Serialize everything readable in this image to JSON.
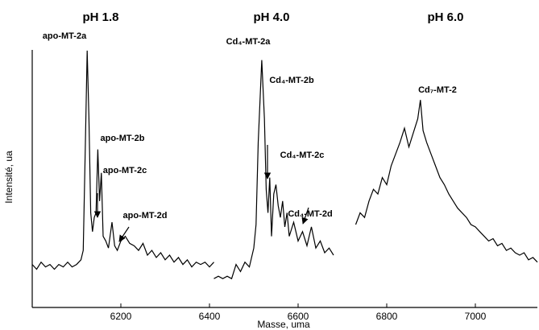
{
  "chart_data": {
    "type": "line",
    "xlabel": "Masse, uma",
    "ylabel": "Intensité, ua",
    "xlim": [
      6000,
      7140
    ],
    "ylim": [
      0,
      100
    ],
    "xticks": [
      6200,
      6400,
      6600,
      6800,
      7000
    ],
    "series": [
      {
        "name": "pH 1.8",
        "color": "#000000",
        "x": [
          6000,
          6010,
          6020,
          6030,
          6040,
          6050,
          6060,
          6070,
          6080,
          6090,
          6100,
          6110,
          6115,
          6120,
          6124,
          6128,
          6132,
          6136,
          6140,
          6144,
          6148,
          6152,
          6156,
          6160,
          6166,
          6172,
          6180,
          6186,
          6192,
          6200,
          6210,
          6220,
          6230,
          6240,
          6250,
          6260,
          6270,
          6280,
          6290,
          6300,
          6310,
          6320,
          6330,
          6340,
          6350,
          6360,
          6370,
          6380,
          6390,
          6400,
          6410
        ],
        "values": [
          8,
          6,
          9,
          7,
          8,
          6,
          8,
          7,
          9,
          7,
          8,
          10,
          14,
          60,
          99,
          70,
          30,
          22,
          28,
          30,
          57,
          35,
          47,
          20,
          18,
          15,
          26,
          16,
          14,
          18,
          20,
          17,
          16,
          14,
          17,
          12,
          14,
          11,
          13,
          10,
          12,
          9,
          11,
          8,
          10,
          7,
          9,
          8,
          9,
          7,
          9
        ]
      },
      {
        "name": "pH 4.0",
        "color": "#000000",
        "x": [
          6410,
          6420,
          6430,
          6440,
          6450,
          6460,
          6470,
          6480,
          6490,
          6500,
          6505,
          6510,
          6518,
          6524,
          6528,
          6532,
          6536,
          6540,
          6545,
          6550,
          6555,
          6560,
          6565,
          6570,
          6575,
          6580,
          6590,
          6600,
          6610,
          6620,
          6630,
          6640,
          6650,
          6660,
          6670,
          6680
        ],
        "values": [
          2,
          3,
          2,
          3,
          2,
          8,
          5,
          9,
          7,
          15,
          25,
          60,
          95,
          70,
          40,
          30,
          45,
          20,
          38,
          42,
          33,
          28,
          35,
          24,
          30,
          20,
          26,
          18,
          22,
          16,
          24,
          15,
          18,
          13,
          15,
          12
        ]
      },
      {
        "name": "pH 6.0",
        "color": "#000000",
        "x": [
          6730,
          6740,
          6750,
          6760,
          6770,
          6780,
          6790,
          6800,
          6810,
          6820,
          6830,
          6840,
          6850,
          6860,
          6870,
          6876,
          6882,
          6890,
          6900,
          6910,
          6920,
          6930,
          6940,
          6950,
          6960,
          6970,
          6980,
          6990,
          7000,
          7010,
          7020,
          7030,
          7040,
          7050,
          7060,
          7070,
          7080,
          7090,
          7100,
          7110,
          7120,
          7130,
          7140
        ],
        "values": [
          25,
          30,
          28,
          35,
          40,
          38,
          45,
          42,
          50,
          55,
          60,
          66,
          58,
          64,
          70,
          78,
          65,
          60,
          55,
          50,
          45,
          42,
          38,
          35,
          32,
          30,
          28,
          25,
          24,
          22,
          20,
          18,
          19,
          16,
          17,
          14,
          15,
          13,
          12,
          13,
          10,
          11,
          9
        ]
      }
    ],
    "annotations": [
      "apo-MT-2a",
      "apo-MT-2b",
      "apo-MT-2c",
      "apo-MT-2d",
      "Cd₄-MT-2a",
      "Cd₄-MT-2b",
      "Cd₄-MT-2c",
      "Cd₄-MT-2d",
      "Cd₇-MT-2"
    ]
  }
}
